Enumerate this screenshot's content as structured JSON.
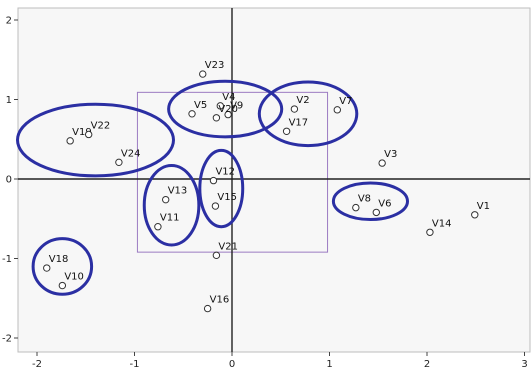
{
  "chart_data": {
    "type": "scatter",
    "title": "",
    "xlabel": "",
    "ylabel": "",
    "xlim": [
      -2.2,
      3.1
    ],
    "ylim": [
      -2.15,
      2.2
    ],
    "xticks": [
      -2,
      -1,
      0,
      1,
      2,
      3
    ],
    "yticks": [
      2,
      1,
      0,
      -1,
      -2
    ],
    "xtick_labels": [
      "-2",
      "-1",
      "0",
      "1",
      "2",
      "3"
    ],
    "ytick_labels": [
      "2",
      "1",
      "0",
      "-1",
      "-2"
    ],
    "grid": false,
    "points": [
      {
        "label": "V1",
        "x": 2.49,
        "y": -0.45
      },
      {
        "label": "V2",
        "x": 0.64,
        "y": 0.88
      },
      {
        "label": "V3",
        "x": 1.54,
        "y": 0.2
      },
      {
        "label": "V4",
        "x": -0.12,
        "y": 0.92
      },
      {
        "label": "V5",
        "x": -0.41,
        "y": 0.82
      },
      {
        "label": "V6",
        "x": 1.48,
        "y": -0.42
      },
      {
        "label": "V7",
        "x": 1.08,
        "y": 0.87
      },
      {
        "label": "V8",
        "x": 1.27,
        "y": -0.36
      },
      {
        "label": "V9",
        "x": -0.04,
        "y": 0.81
      },
      {
        "label": "V10",
        "x": -1.74,
        "y": -1.34
      },
      {
        "label": "V11",
        "x": -0.76,
        "y": -0.6
      },
      {
        "label": "V12",
        "x": -0.19,
        "y": -0.02
      },
      {
        "label": "V13",
        "x": -0.68,
        "y": -0.26
      },
      {
        "label": "V14",
        "x": 2.03,
        "y": -0.67
      },
      {
        "label": "V15",
        "x": -0.17,
        "y": -0.34
      },
      {
        "label": "V16",
        "x": -0.25,
        "y": -1.63
      },
      {
        "label": "V17",
        "x": 0.56,
        "y": 0.6
      },
      {
        "label": "V18",
        "x": -1.9,
        "y": -1.12
      },
      {
        "label": "V19",
        "x": -1.66,
        "y": 0.48
      },
      {
        "label": "V20",
        "x": -0.16,
        "y": 0.77
      },
      {
        "label": "V21",
        "x": -0.16,
        "y": -0.96
      },
      {
        "label": "V22",
        "x": -1.47,
        "y": 0.56
      },
      {
        "label": "V23",
        "x": -0.3,
        "y": 1.32
      },
      {
        "label": "V24",
        "x": -1.16,
        "y": 0.21
      }
    ],
    "clusters": [
      {
        "members": [
          "V22",
          "V19",
          "V24"
        ],
        "cx": -1.4,
        "cy": 0.49,
        "rx": 0.8,
        "ry": 0.45
      },
      {
        "members": [
          "V4",
          "V5",
          "V9",
          "V20"
        ],
        "cx": -0.07,
        "cy": 0.88,
        "rx": 0.58,
        "ry": 0.35
      },
      {
        "members": [
          "V2",
          "V17",
          "V7"
        ],
        "cx": 0.78,
        "cy": 0.82,
        "rx": 0.5,
        "ry": 0.4
      },
      {
        "members": [
          "V12",
          "V15"
        ],
        "cx": -0.11,
        "cy": -0.12,
        "rx": 0.22,
        "ry": 0.48
      },
      {
        "members": [
          "V13",
          "V11"
        ],
        "cx": -0.62,
        "cy": -0.33,
        "rx": 0.28,
        "ry": 0.5
      },
      {
        "members": [
          "V8",
          "V6"
        ],
        "cx": 1.42,
        "cy": -0.28,
        "rx": 0.38,
        "ry": 0.23
      },
      {
        "members": [
          "V18",
          "V10"
        ],
        "cx": -1.74,
        "cy": -1.1,
        "rx": 0.3,
        "ry": 0.35
      }
    ],
    "frame": {
      "x_min": -0.97,
      "x_max": 0.98,
      "y_min": -0.92,
      "y_max": 1.09
    }
  }
}
